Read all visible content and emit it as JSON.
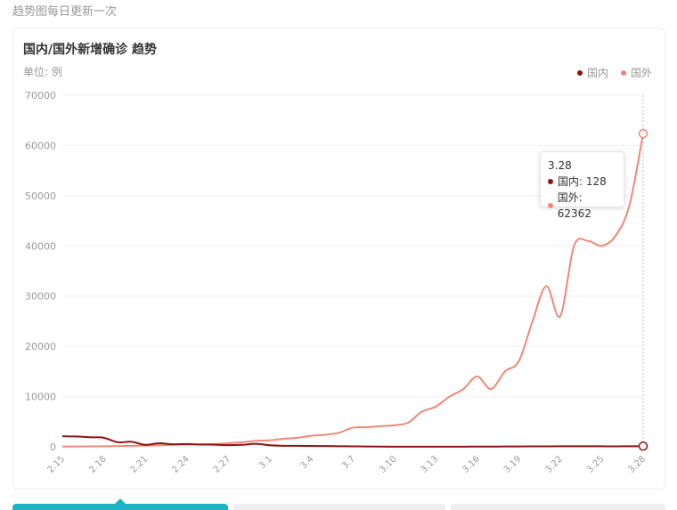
{
  "page_note": "趋势图每日更新一次",
  "card": {
    "title": "国内/国外新增确诊 趋势",
    "unit": "单位: 例"
  },
  "legend": [
    {
      "label": "国内",
      "color": "#8b1414"
    },
    {
      "label": "国外",
      "color": "#f08878"
    }
  ],
  "tooltip": {
    "date": "3.28",
    "rows": [
      {
        "label": "国内: 128",
        "color": "#8b1414"
      },
      {
        "label": "国外: 62362",
        "color": "#f08878"
      }
    ]
  },
  "chart_data": {
    "type": "line",
    "title": "国内/国外新增确诊 趋势",
    "ylabel": "单位: 例",
    "ylim": [
      0,
      70000
    ],
    "yticks": [
      0,
      10000,
      20000,
      30000,
      40000,
      50000,
      60000,
      70000
    ],
    "xtick_labels": [
      "2.15",
      "2.18",
      "2.21",
      "2.24",
      "2.27",
      "3.1",
      "3.4",
      "3.7",
      "3.10",
      "3.13",
      "3.16",
      "3.19",
      "3.22",
      "3.25",
      "3.28"
    ],
    "x": [
      "2.15",
      "2.16",
      "2.17",
      "2.18",
      "2.19",
      "2.20",
      "2.21",
      "2.22",
      "2.23",
      "2.24",
      "2.25",
      "2.26",
      "2.27",
      "2.28",
      "2.29",
      "3.1",
      "3.2",
      "3.3",
      "3.4",
      "3.5",
      "3.6",
      "3.7",
      "3.8",
      "3.9",
      "3.10",
      "3.11",
      "3.12",
      "3.13",
      "3.14",
      "3.15",
      "3.16",
      "3.17",
      "3.18",
      "3.19",
      "3.20",
      "3.21",
      "3.22",
      "3.23",
      "3.24",
      "3.25",
      "3.26",
      "3.27",
      "3.28"
    ],
    "series": [
      {
        "name": "国内",
        "color": "#8b1414",
        "values": [
          2100,
          2050,
          1900,
          1800,
          900,
          1000,
          400,
          700,
          500,
          550,
          450,
          420,
          330,
          400,
          600,
          300,
          200,
          190,
          170,
          150,
          120,
          90,
          60,
          40,
          30,
          30,
          20,
          15,
          20,
          30,
          50,
          40,
          60,
          70,
          80,
          90,
          100,
          110,
          120,
          100,
          90,
          110,
          128
        ]
      },
      {
        "name": "国外",
        "color": "#f08878",
        "values": [
          50,
          60,
          80,
          100,
          150,
          200,
          250,
          300,
          400,
          450,
          500,
          550,
          700,
          900,
          1200,
          1300,
          1600,
          1800,
          2200,
          2400,
          2800,
          3800,
          3900,
          4100,
          4300,
          4800,
          7000,
          8000,
          10000,
          11500,
          14000,
          11500,
          15000,
          17000,
          25000,
          32000,
          26000,
          40000,
          41000,
          40000,
          42000,
          48000,
          62362
        ]
      }
    ]
  }
}
